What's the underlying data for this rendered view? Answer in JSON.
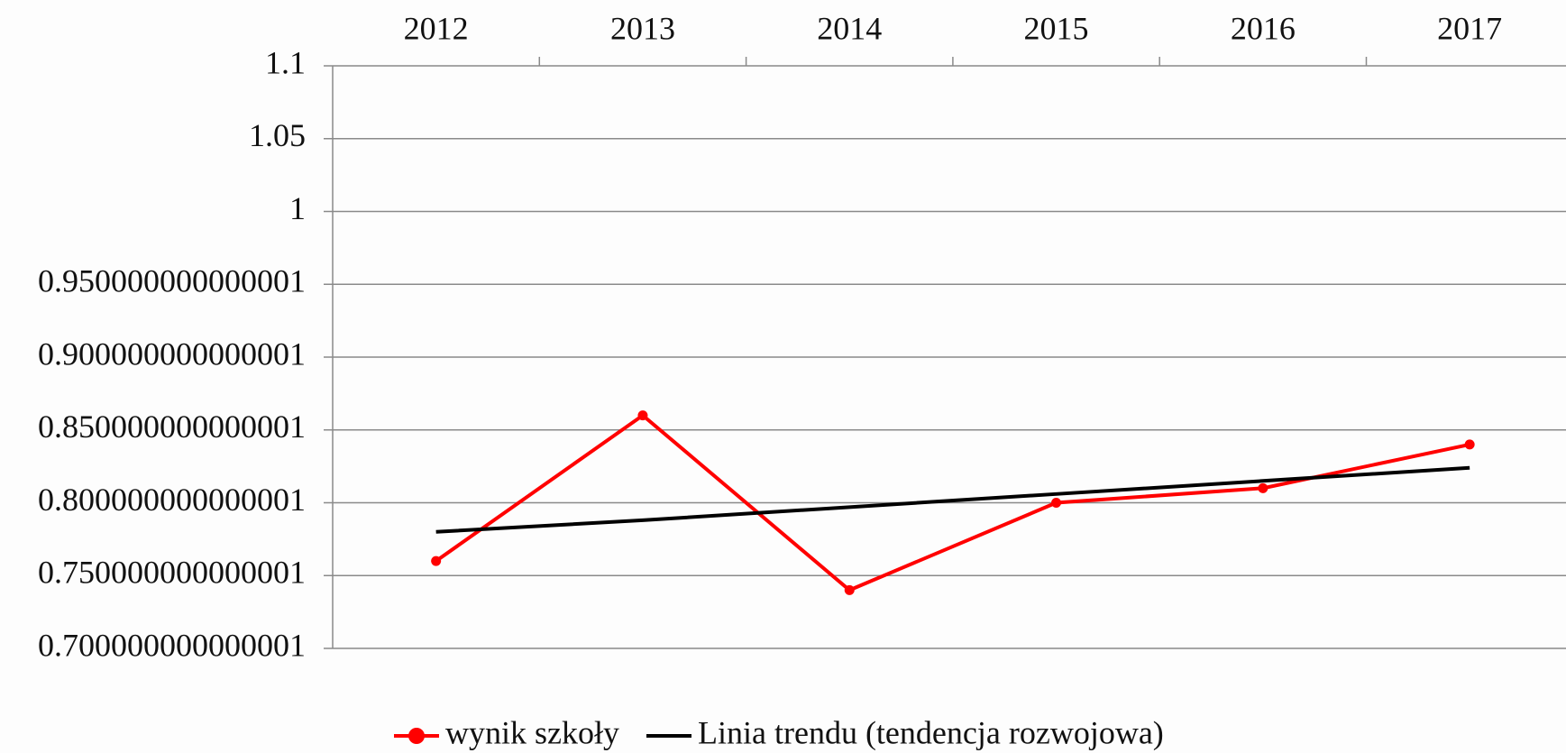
{
  "chart_data": {
    "type": "line",
    "categories": [
      "2012",
      "2013",
      "2014",
      "2015",
      "2016",
      "2017"
    ],
    "series": [
      {
        "name": "wynik szkoły",
        "color": "#ff0000",
        "values": [
          0.76,
          0.86,
          0.74,
          0.8,
          0.81,
          0.84
        ],
        "markers": true
      },
      {
        "name": "Linia trendu (tendencja rozwojowa)",
        "color": "#000000",
        "values": [
          0.78,
          0.788,
          0.797,
          0.806,
          0.815,
          0.824
        ],
        "markers": false
      }
    ],
    "ylim": [
      0.7,
      1.1
    ],
    "yticks": [
      {
        "value": 0.7,
        "label": "0.700000000000001"
      },
      {
        "value": 0.75,
        "label": "0.750000000000001"
      },
      {
        "value": 0.8,
        "label": "0.800000000000001"
      },
      {
        "value": 0.85,
        "label": "0.850000000000001"
      },
      {
        "value": 0.9,
        "label": "0.900000000000001"
      },
      {
        "value": 0.95,
        "label": "0.950000000000001"
      },
      1,
      1.05,
      1.1
    ],
    "grid": true,
    "x_axis_position": "top",
    "legend": "bottom"
  }
}
